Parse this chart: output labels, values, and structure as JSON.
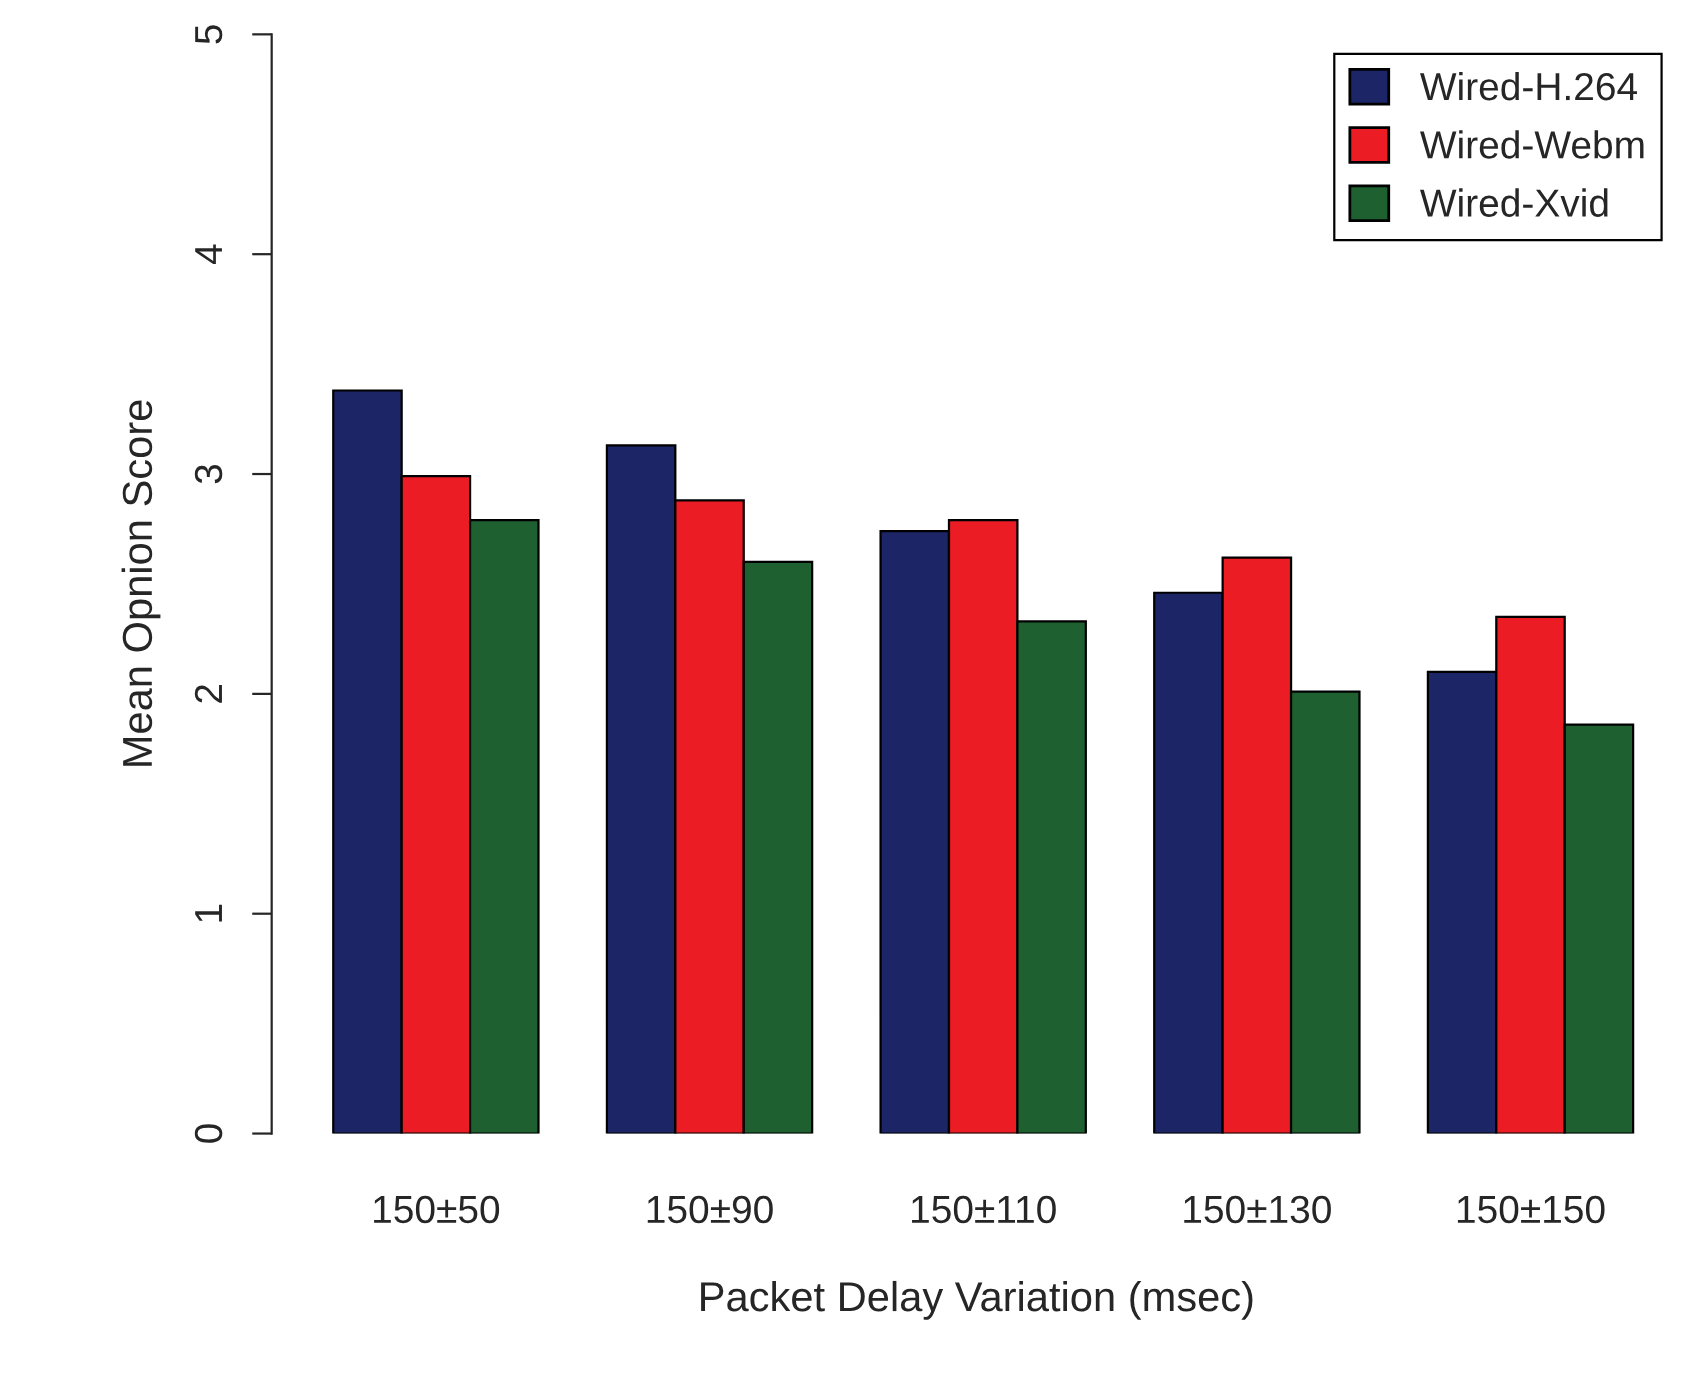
{
  "chart_data": {
    "type": "bar",
    "xlabel": "Packet Delay Variation (msec)",
    "ylabel": "Mean Opnion Score",
    "categories": [
      "150±50",
      "150±90",
      "150±110",
      "150±130",
      "150±150"
    ],
    "series": [
      {
        "name": "Wired-H.264",
        "color": "#1c2566",
        "values": [
          3.38,
          3.13,
          2.74,
          2.46,
          2.1
        ]
      },
      {
        "name": "Wired-Webm",
        "color": "#ec1c24",
        "values": [
          2.99,
          2.88,
          2.79,
          2.62,
          2.35
        ]
      },
      {
        "name": "Wired-Xvid",
        "color": "#1f6030",
        "values": [
          2.79,
          2.6,
          2.33,
          2.01,
          1.86
        ]
      }
    ],
    "ylim": [
      0,
      5
    ],
    "yticks": [
      0,
      1,
      2,
      3,
      4,
      5
    ],
    "grid": false,
    "legend": "top right"
  }
}
